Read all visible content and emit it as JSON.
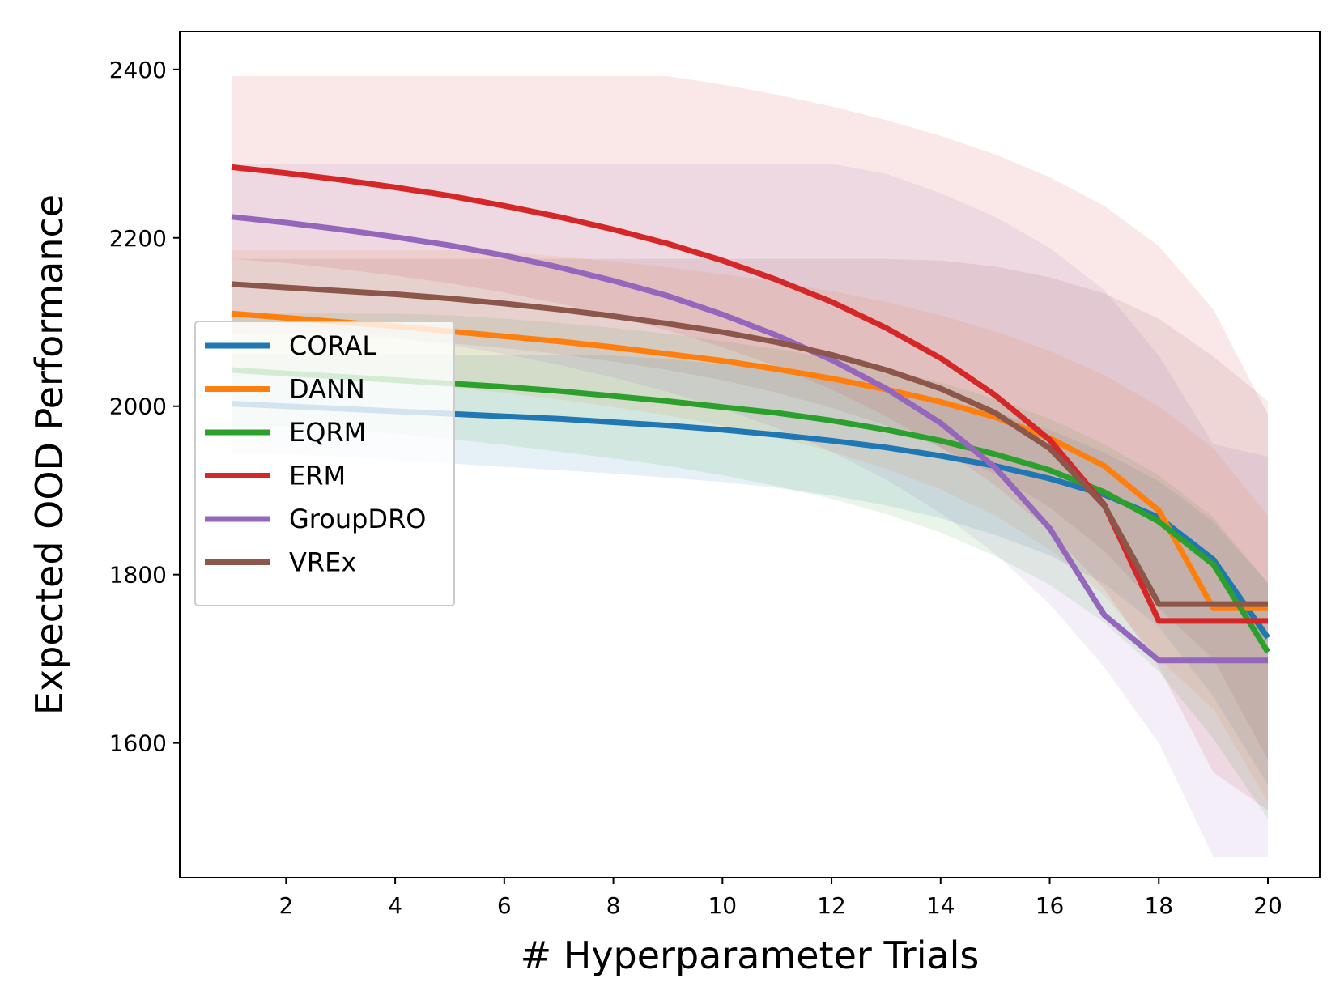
{
  "chart_data": {
    "type": "line",
    "title": "",
    "xlabel": "# Hyperparameter Trials",
    "ylabel": "Expected OOD Performance",
    "xlim": [
      0.05,
      20.95
    ],
    "ylim": [
      1440,
      2445
    ],
    "xticks": [
      2,
      4,
      6,
      8,
      10,
      12,
      14,
      16,
      18,
      20
    ],
    "yticks": [
      1600,
      1800,
      2000,
      2200,
      2400
    ],
    "grid": false,
    "legend_position": "center-left",
    "x": [
      1,
      2,
      3,
      4,
      5,
      6,
      7,
      8,
      9,
      10,
      11,
      12,
      13,
      14,
      15,
      16,
      17,
      18,
      19,
      20
    ],
    "series": [
      {
        "name": "CORAL",
        "color": "#1f77b4",
        "values": [
          2003,
          2000,
          1997,
          1994,
          1991,
          1988,
          1985,
          1981,
          1977,
          1972,
          1966,
          1959,
          1951,
          1941,
          1929,
          1914,
          1895,
          1868,
          1818,
          1725
        ],
        "lower": [
          1945,
          1943,
          1940,
          1936,
          1932,
          1928,
          1924,
          1920,
          1915,
          1910,
          1903,
          1894,
          1882,
          1867,
          1847,
          1823,
          1789,
          1738,
          1655,
          1550
        ],
        "upper": [
          2061,
          2061,
          2061,
          2061,
          2061,
          2061,
          2061,
          2060,
          2056,
          2050,
          2043,
          2034,
          2023,
          2009,
          1993,
          1972,
          1945,
          1911,
          1863,
          1790
        ]
      },
      {
        "name": "DANN",
        "color": "#ff7f0e",
        "values": [
          2110,
          2105,
          2100,
          2095,
          2089,
          2083,
          2077,
          2070,
          2062,
          2054,
          2044,
          2033,
          2020,
          2005,
          1987,
          1962,
          1929,
          1876,
          1760,
          1760
        ],
        "lower": [
          2035,
          2035,
          2032,
          2028,
          2022,
          2016,
          2008,
          1999,
          1989,
          1977,
          1963,
          1946,
          1926,
          1901,
          1870,
          1830,
          1775,
          1700,
          1640,
          1530
        ],
        "upper": [
          2185,
          2185,
          2185,
          2185,
          2185,
          2183,
          2178,
          2172,
          2165,
          2157,
          2148,
          2137,
          2124,
          2108,
          2089,
          2066,
          2037,
          2000,
          1950,
          1870
        ]
      },
      {
        "name": "EQRM",
        "color": "#2ca02c",
        "values": [
          2043,
          2039,
          2035,
          2031,
          2027,
          2023,
          2018,
          2012,
          2006,
          1999,
          1992,
          1983,
          1972,
          1959,
          1943,
          1924,
          1898,
          1863,
          1812,
          1708
        ],
        "lower": [
          1975,
          1975,
          1972,
          1967,
          1961,
          1954,
          1946,
          1938,
          1929,
          1918,
          1905,
          1890,
          1872,
          1850,
          1822,
          1788,
          1743,
          1685,
          1605,
          1510
        ],
        "upper": [
          2110,
          2110,
          2110,
          2110,
          2108,
          2104,
          2099,
          2093,
          2086,
          2077,
          2068,
          2057,
          2044,
          2028,
          2009,
          1985,
          1955,
          1918,
          1868,
          1790
        ]
      },
      {
        "name": "ERM",
        "color": "#d62728",
        "values": [
          2284,
          2277,
          2269,
          2260,
          2250,
          2238,
          2225,
          2210,
          2193,
          2173,
          2150,
          2124,
          2093,
          2057,
          2013,
          1960,
          1883,
          1745,
          1745,
          1745
        ],
        "lower": [
          2175,
          2170,
          2163,
          2155,
          2146,
          2135,
          2122,
          2107,
          2090,
          2070,
          2047,
          2020,
          1988,
          1951,
          1906,
          1852,
          1783,
          1690,
          1565,
          1520
        ],
        "upper": [
          2392,
          2392,
          2392,
          2392,
          2392,
          2392,
          2392,
          2392,
          2392,
          2382,
          2370,
          2356,
          2340,
          2321,
          2299,
          2272,
          2238,
          2190,
          2115,
          1990
        ]
      },
      {
        "name": "GroupDRO",
        "color": "#9467bd",
        "values": [
          2225,
          2218,
          2210,
          2201,
          2191,
          2179,
          2165,
          2149,
          2131,
          2109,
          2084,
          2055,
          2021,
          1980,
          1927,
          1855,
          1752,
          1698,
          1698,
          1698
        ],
        "lower": [
          2100,
          2096,
          2090,
          2082,
          2073,
          2062,
          2049,
          2034,
          2017,
          1997,
          1974,
          1946,
          1913,
          1873,
          1825,
          1765,
          1690,
          1600,
          1465,
          1465
        ],
        "upper": [
          2288,
          2288,
          2288,
          2288,
          2288,
          2288,
          2288,
          2288,
          2288,
          2288,
          2288,
          2288,
          2276,
          2253,
          2225,
          2188,
          2138,
          2060,
          1955,
          1940
        ]
      },
      {
        "name": "VREx",
        "color": "#8c564b",
        "values": [
          2145,
          2141,
          2137,
          2133,
          2128,
          2122,
          2115,
          2107,
          2098,
          2088,
          2076,
          2061,
          2043,
          2021,
          1992,
          1950,
          1882,
          1765,
          1765,
          1765
        ],
        "lower": [
          2087,
          2086,
          2084,
          2080,
          2075,
          2069,
          2062,
          2053,
          2043,
          2031,
          2016,
          1998,
          1977,
          1951,
          1919,
          1880,
          1828,
          1760,
          1700,
          1580
        ],
        "upper": [
          2175,
          2175,
          2175,
          2175,
          2175,
          2175,
          2175,
          2175,
          2175,
          2175,
          2175,
          2175,
          2175,
          2173,
          2166,
          2153,
          2134,
          2104,
          2059,
          2006
        ]
      }
    ]
  }
}
